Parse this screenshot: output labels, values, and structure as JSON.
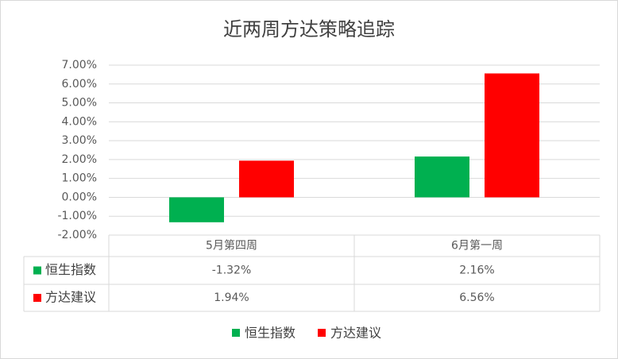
{
  "chart_data": {
    "type": "bar",
    "title": "近两周方达策略追踪",
    "categories": [
      "5月第四周",
      "6月第一周"
    ],
    "series": [
      {
        "name": "恒生指数",
        "color": "#00b050",
        "values": [
          -1.32,
          2.16
        ],
        "value_labels": [
          "-1.32%",
          "2.16%"
        ]
      },
      {
        "name": "方达建议",
        "color": "#ff0000",
        "values": [
          1.94,
          6.56
        ],
        "value_labels": [
          "1.94%",
          "6.56%"
        ]
      }
    ],
    "ylim": [
      -2,
      7
    ],
    "yticks": [
      {
        "value": -2,
        "label": "-2.00%"
      },
      {
        "value": -1,
        "label": "-1.00%"
      },
      {
        "value": 0,
        "label": "0.00%"
      },
      {
        "value": 1,
        "label": "1.00%"
      },
      {
        "value": 2,
        "label": "2.00%"
      },
      {
        "value": 3,
        "label": "3.00%"
      },
      {
        "value": 4,
        "label": "4.00%"
      },
      {
        "value": 5,
        "label": "5.00%"
      },
      {
        "value": 6,
        "label": "6.00%"
      },
      {
        "value": 7,
        "label": "7.00%"
      }
    ],
    "grid": true,
    "legend": "bottom",
    "data_table": true
  }
}
